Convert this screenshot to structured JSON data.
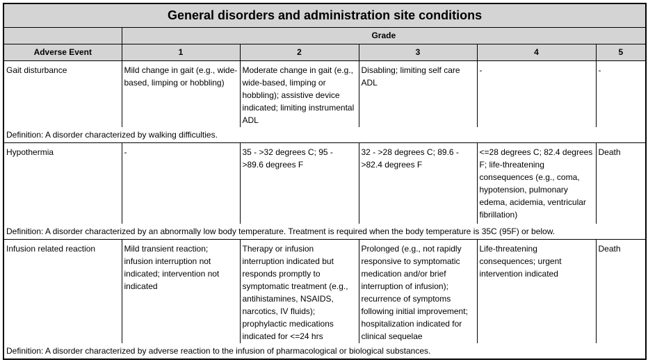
{
  "table_title": "General disorders and administration site conditions",
  "grade_label": "Grade",
  "columns": [
    "Adverse Event",
    "1",
    "2",
    "3",
    "4",
    "5"
  ],
  "rows": [
    {
      "event": "Gait disturbance",
      "grades": [
        "Mild change in gait (e.g., wide-based, limping or hobbling)",
        "Moderate change in gait (e.g., wide-based, limping or hobbling); assistive device indicated; limiting instrumental ADL",
        "Disabling; limiting self care ADL",
        "-",
        "-"
      ],
      "definition": "Definition: A disorder characterized by walking difficulties."
    },
    {
      "event": "Hypothermia",
      "grades": [
        "-",
        "35 - >32 degrees C;  95 - >89.6 degrees F",
        "32 - >28 degrees C;  89.6 - >82.4 degrees F",
        "<=28 degrees C; 82.4 degrees F; life-threatening consequences (e.g., coma, hypotension, pulmonary edema, acidemia, ventricular fibrillation)",
        "Death"
      ],
      "definition": "Definition: A disorder characterized by an abnormally low body temperature. Treatment is required when the body temperature is 35C (95F) or below."
    },
    {
      "event": "Infusion related reaction",
      "grades": [
        "Mild transient reaction; infusion interruption not indicated; intervention not indicated",
        "Therapy or infusion interruption indicated but responds promptly to symptomatic treatment (e.g., antihistamines, NSAIDS, narcotics, IV fluids); prophylactic medications indicated for <=24 hrs",
        "Prolonged (e.g., not rapidly responsive to symptomatic medication and/or brief interruption of infusion); recurrence of symptoms following initial improvement; hospitalization indicated for clinical sequelae",
        "Life-threatening consequences; urgent intervention indicated",
        "Death"
      ],
      "definition": "Definition: A disorder characterized by adverse reaction to the infusion of pharmacological or biological substances."
    }
  ]
}
